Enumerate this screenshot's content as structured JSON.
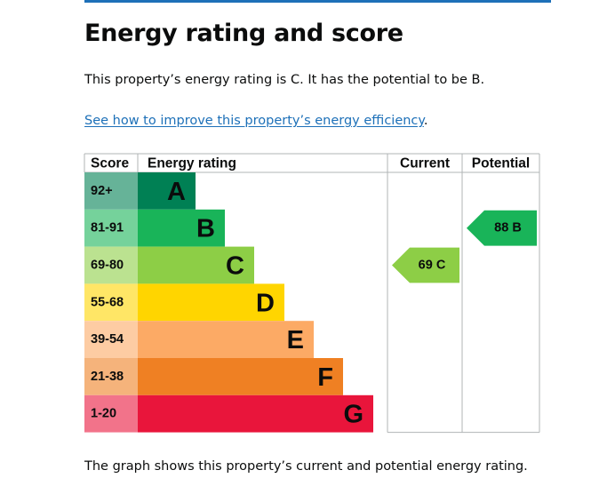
{
  "heading": "Energy rating and score",
  "summary": "This property’s energy rating is C. It has the potential to be B.",
  "improve_link": "See how to improve this property’s energy efficiency",
  "improve_link_suffix": ".",
  "footer_text": "The graph shows this property’s current and potential energy rating.",
  "chart_data": {
    "type": "bar",
    "headers": {
      "score": "Score",
      "rating": "Energy rating",
      "current": "Current",
      "potential": "Potential"
    },
    "bands": [
      {
        "range": "92+",
        "letter": "A",
        "color": "#008054",
        "score_bg": "#66b398"
      },
      {
        "range": "81-91",
        "letter": "B",
        "color": "#19b459",
        "score_bg": "#75d29b"
      },
      {
        "range": "69-80",
        "letter": "C",
        "color": "#8dce46",
        "score_bg": "#bbe290"
      },
      {
        "range": "55-68",
        "letter": "D",
        "color": "#ffd500",
        "score_bg": "#ffe666"
      },
      {
        "range": "39-54",
        "letter": "E",
        "color": "#fcaa65",
        "score_bg": "#fdcca3"
      },
      {
        "range": "21-38",
        "letter": "F",
        "color": "#ef8023",
        "score_bg": "#f5b37b"
      },
      {
        "range": "1-20",
        "letter": "G",
        "color": "#e9153b",
        "score_bg": "#f2738a"
      }
    ],
    "current": {
      "score": 69,
      "letter": "C",
      "label": "69 C",
      "color": "#8dce46"
    },
    "potential": {
      "score": 88,
      "letter": "B",
      "label": "88 B",
      "color": "#19b459"
    }
  }
}
